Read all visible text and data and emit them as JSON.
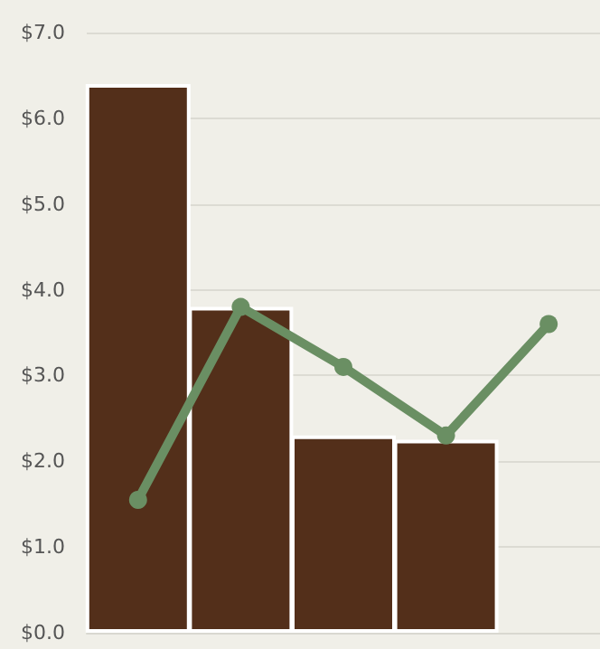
{
  "chart_data": {
    "type": "bar",
    "categories": [
      null,
      null,
      null,
      null,
      null
    ],
    "series": [
      {
        "color": "#532f1a",
        "values": [
          6.4,
          3.8,
          2.3,
          2.25,
          null
        ]
      },
      {
        "type": "line",
        "color": "#6a8f63",
        "values": [
          1.55,
          3.8,
          3.1,
          2.3,
          3.6
        ]
      }
    ],
    "ylim": [
      0,
      7
    ],
    "yticks": [
      {
        "value": 0,
        "label": "$0.0"
      },
      {
        "value": 1,
        "label": "$1.0"
      },
      {
        "value": 2,
        "label": "$2.0"
      },
      {
        "value": 3,
        "label": "$3.0"
      },
      {
        "value": 4,
        "label": "$4.0"
      },
      {
        "value": 5,
        "label": "$5.0"
      },
      {
        "value": 6,
        "label": "$6.0"
      },
      {
        "value": 7,
        "label": "$7.0"
      }
    ],
    "grid": "y",
    "marker": "circle",
    "line_style": "solid",
    "tick_labels": "y"
  }
}
